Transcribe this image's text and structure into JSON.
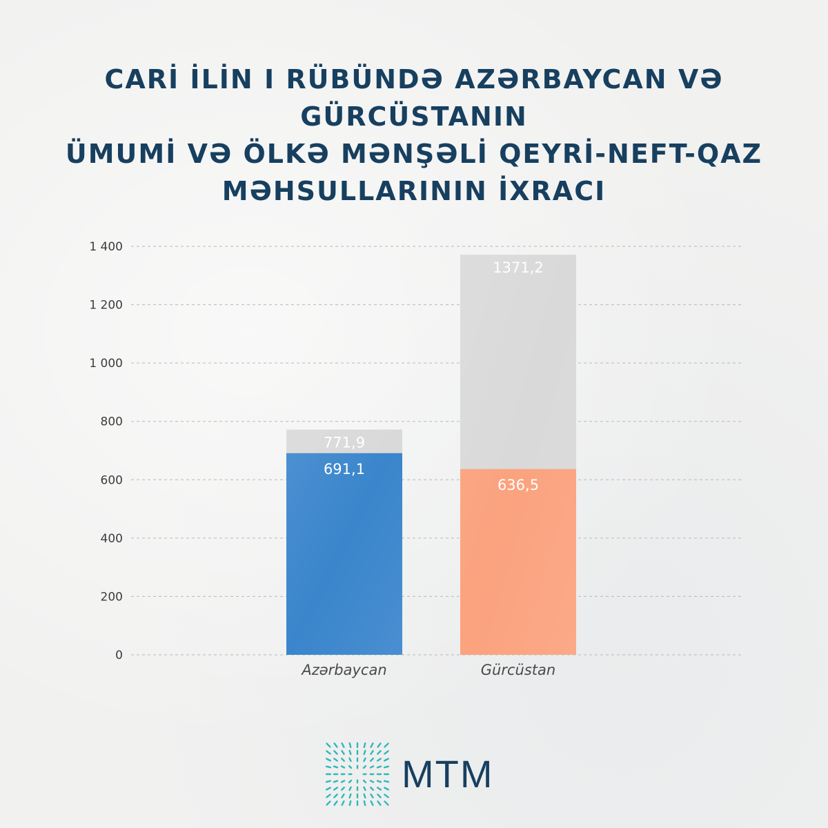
{
  "title_lines": [
    "CARİ İLİN I RÜBÜNDƏ AZƏRBAYCAN VƏ GÜRCÜSTANIN",
    "ÜMUMİ VƏ ÖLKƏ MƏNŞƏLİ QEYRİ-NEFT-QAZ",
    "MƏHSULLARININ İXRACI"
  ],
  "chart_data": {
    "type": "bar",
    "stacked_overlay": true,
    "categories": [
      "Azərbaycan",
      "Gürcüstan"
    ],
    "series": [
      {
        "values": [
          771.9,
          1371.2
        ],
        "value_labels": [
          "771,9",
          "1371,2"
        ],
        "color": "#d9d9d9"
      },
      {
        "values": [
          691.1,
          636.5
        ],
        "value_labels": [
          "691,1",
          "636,5"
        ],
        "colors": [
          "#3a85cc",
          "#fba27e"
        ]
      }
    ],
    "ylim": [
      0,
      1400
    ],
    "yticks": [
      0,
      200,
      400,
      600,
      800,
      1000,
      1200,
      1400
    ],
    "ytick_labels": [
      "0",
      "200",
      "400",
      "600",
      "800",
      "1 000",
      "1 200",
      "1 400"
    ],
    "grid": true,
    "xlabel": "",
    "ylabel": ""
  },
  "logo": {
    "text": "MTM",
    "color": "#2fb8b8"
  },
  "colors": {
    "title": "#173f5f",
    "grid": "#b8b8b8"
  }
}
